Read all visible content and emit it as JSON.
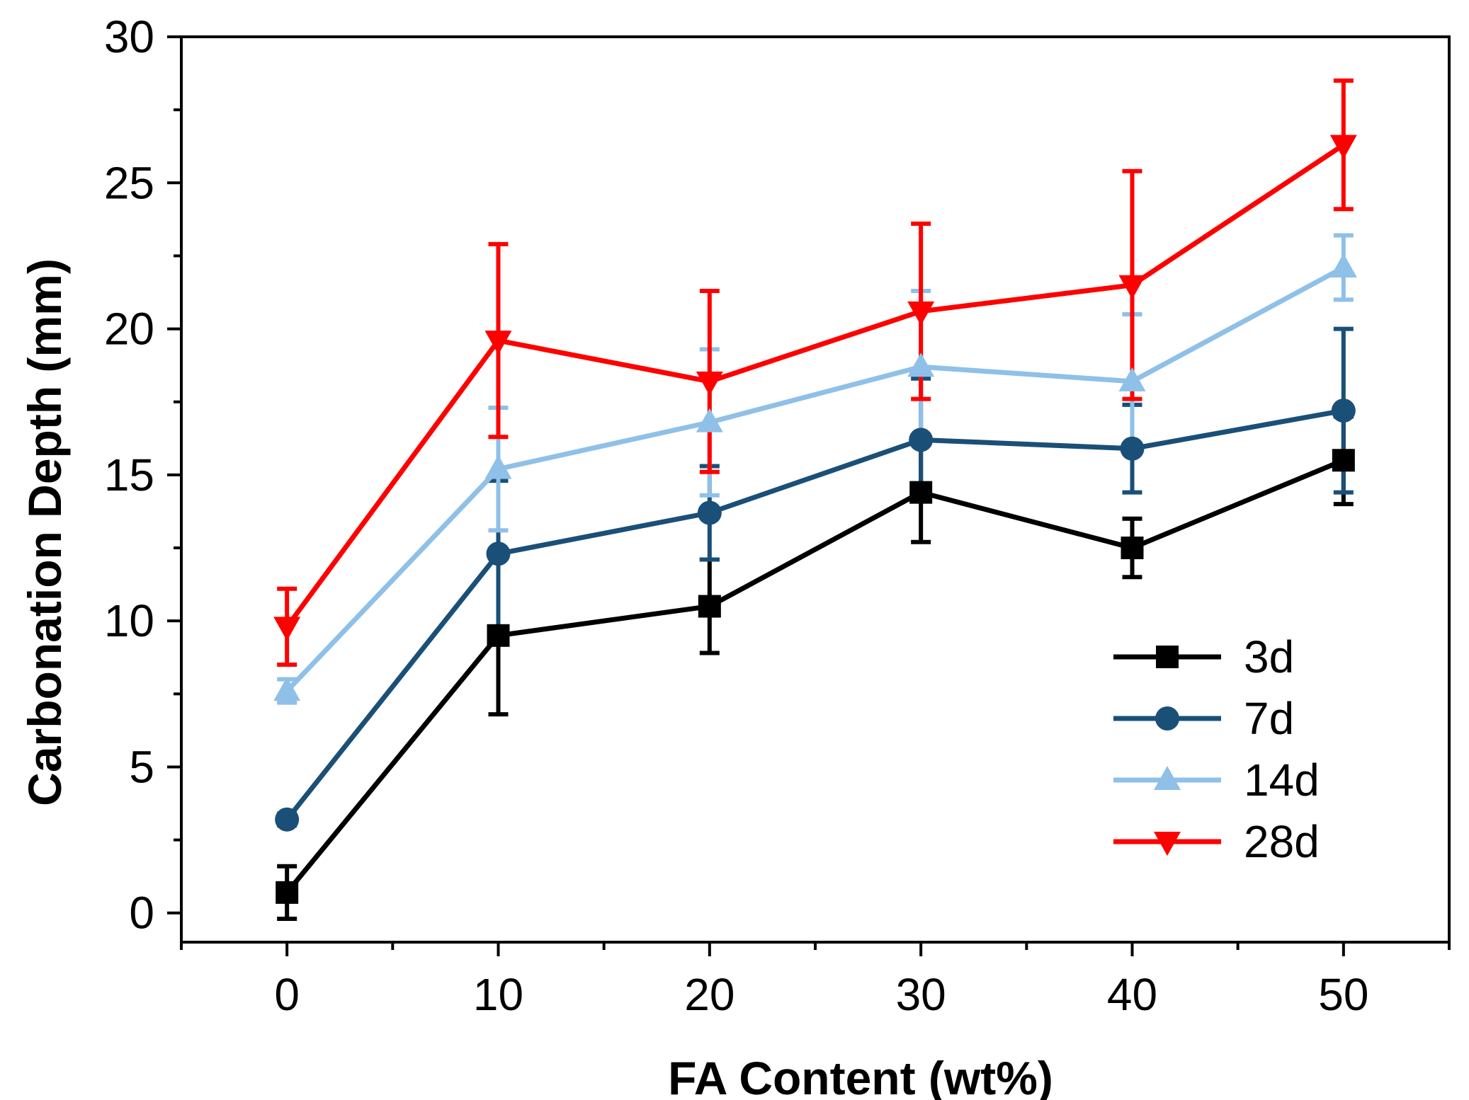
{
  "chart_data": {
    "type": "line",
    "title": "",
    "xlabel": "FA Content (wt%)",
    "ylabel": "Carbonation Depth (mm)",
    "xlim": [
      -5,
      55
    ],
    "ylim": [
      -1,
      30
    ],
    "xticks": [
      0,
      10,
      20,
      30,
      40,
      50
    ],
    "yticks": [
      0,
      5,
      10,
      15,
      20,
      25,
      30
    ],
    "x": [
      0,
      10,
      20,
      30,
      40,
      50
    ],
    "grid": false,
    "legend_position": "bottom-right",
    "series": [
      {
        "name": "3d",
        "color": "#000000",
        "marker": "square",
        "values": [
          0.7,
          9.5,
          10.5,
          14.4,
          12.5,
          15.5
        ],
        "errors": [
          0.9,
          2.7,
          1.6,
          1.7,
          1.0,
          1.5
        ]
      },
      {
        "name": "7d",
        "color": "#1a4f78",
        "marker": "circle",
        "values": [
          3.2,
          12.3,
          13.7,
          16.2,
          15.9,
          17.2
        ],
        "errors": [
          0.2,
          2.5,
          1.6,
          2.1,
          1.5,
          2.8
        ]
      },
      {
        "name": "14d",
        "color": "#8fc0e8",
        "marker": "triangle-up",
        "values": [
          7.6,
          15.2,
          16.8,
          18.7,
          18.2,
          22.1
        ],
        "errors": [
          0.4,
          2.1,
          2.5,
          2.6,
          2.3,
          1.1
        ]
      },
      {
        "name": "28d",
        "color": "#ff0000",
        "marker": "triangle-down",
        "values": [
          9.8,
          19.6,
          18.2,
          20.6,
          21.5,
          26.3
        ],
        "errors": [
          1.3,
          3.3,
          3.1,
          3.0,
          3.9,
          2.2
        ]
      }
    ]
  }
}
